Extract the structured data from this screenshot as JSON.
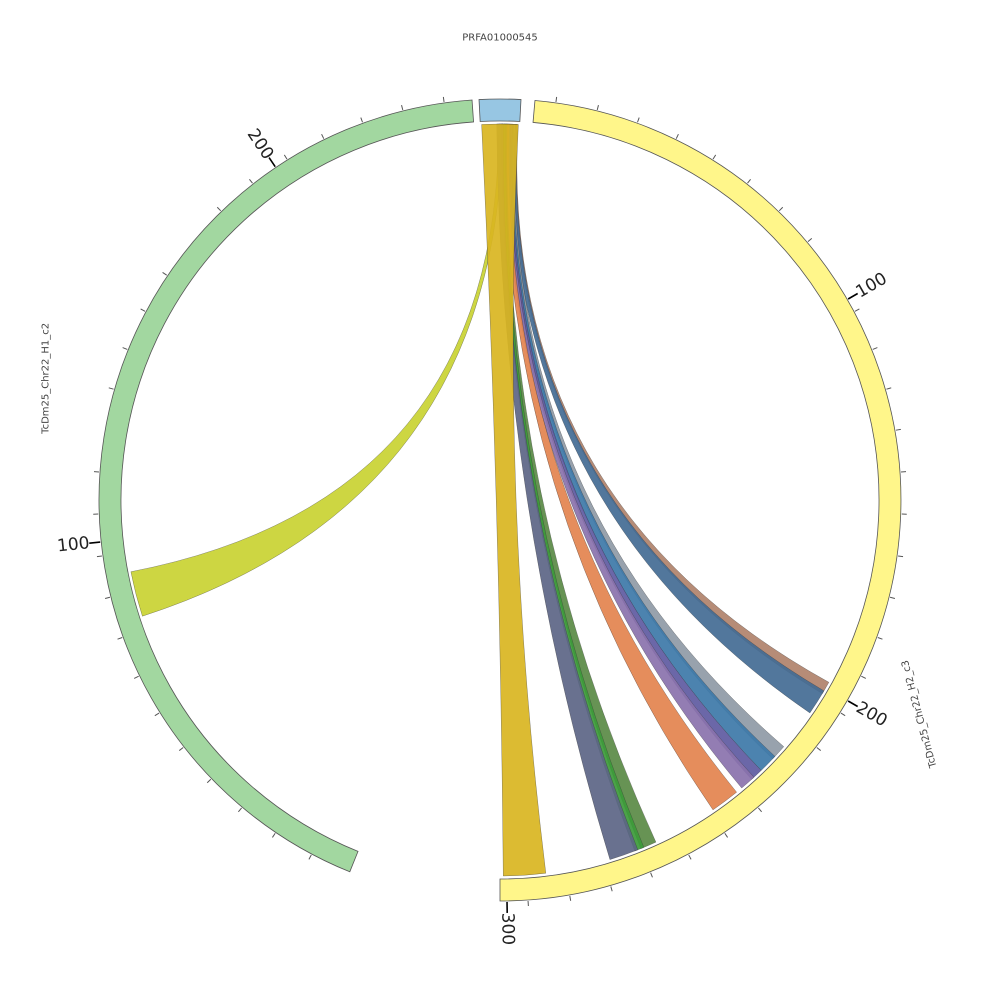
{
  "chart_data": {
    "type": "chord",
    "segments": [
      {
        "id": "prfa",
        "name": "PRFA01000545",
        "color": "#97c6e3"
      },
      {
        "id": "h2",
        "name": "TcDm25_Chr22_H2_c3",
        "color": "#fff68a",
        "tick_labels": [
          "100",
          "200",
          "300"
        ]
      },
      {
        "id": "h1",
        "name": "TcDm25_Chr22_H1_c2",
        "color": "#a2d7a0",
        "tick_labels": [
          "100",
          "200"
        ]
      }
    ],
    "links": [
      {
        "name": "link-h1",
        "color": "#c9d332"
      },
      {
        "name": "link-h2-brown",
        "color": "#b0826b"
      },
      {
        "name": "link-h2-darkblue",
        "color": "#436b94"
      },
      {
        "name": "link-h2-grey",
        "color": "#8f9aa6"
      },
      {
        "name": "link-h2-blue",
        "color": "#3d78a8"
      },
      {
        "name": "link-h2-indigo",
        "color": "#5e5aa1"
      },
      {
        "name": "link-h2-purple",
        "color": "#8a72ad"
      },
      {
        "name": "link-h2-orange",
        "color": "#e3834e"
      },
      {
        "name": "link-h2-green",
        "color": "#5a8a45"
      },
      {
        "name": "link-h2-brightgreen",
        "color": "#3c9a3a"
      },
      {
        "name": "link-h2-slate",
        "color": "#5c6585"
      },
      {
        "name": "link-h2-gold",
        "color": "#d9b521"
      }
    ]
  }
}
